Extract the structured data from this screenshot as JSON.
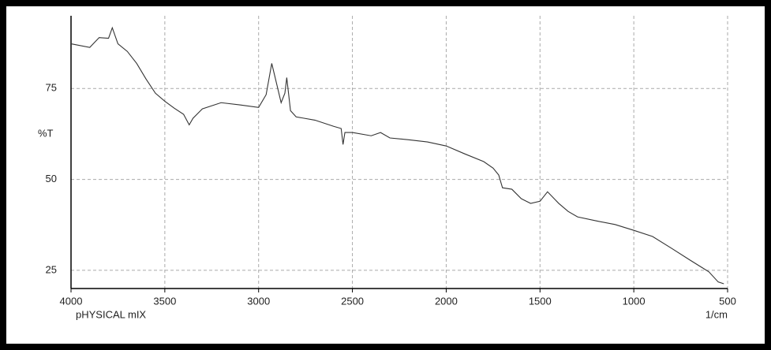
{
  "chart_data": {
    "type": "line",
    "y_label": "%T",
    "x_label": "1/cm",
    "annotation": "pHYSICAL mIX",
    "x": [
      4000,
      3900,
      3850,
      3800,
      3780,
      3750,
      3700,
      3650,
      3600,
      3550,
      3500,
      3450,
      3400,
      3370,
      3350,
      3300,
      3200,
      3100,
      3000,
      2960,
      2930,
      2910,
      2880,
      2860,
      2850,
      2830,
      2800,
      2700,
      2600,
      2560,
      2550,
      2540,
      2500,
      2400,
      2350,
      2300,
      2200,
      2100,
      2000,
      1900,
      1800,
      1750,
      1720,
      1700,
      1650,
      1600,
      1550,
      1500,
      1460,
      1400,
      1350,
      1300,
      1200,
      1100,
      1000,
      900,
      800,
      700,
      600,
      550,
      520
    ],
    "series": [
      {
        "name": "%T",
        "color": "#333333",
        "values": [
          87.3,
          86.3,
          89,
          88.8,
          91.7,
          87.3,
          85.2,
          81.9,
          77.6,
          73.7,
          71.5,
          69.6,
          67.9,
          65,
          66.8,
          69.4,
          71.1,
          70.5,
          69.8,
          73.3,
          81.9,
          77.6,
          71.1,
          73.7,
          78,
          68.9,
          67.2,
          66.3,
          64.6,
          64,
          59.6,
          62.9,
          62.9,
          62,
          62.9,
          61.4,
          60.9,
          60.3,
          59.2,
          57,
          54.9,
          53.1,
          51.2,
          47.7,
          47.3,
          44.7,
          43.4,
          44,
          46.6,
          43.4,
          41.2,
          39.7,
          38.6,
          37.6,
          36,
          34.3,
          31.1,
          27.8,
          24.6,
          21.8,
          21.3
        ]
      }
    ],
    "xlim": [
      4000,
      500
    ],
    "xticks": [
      4000,
      3500,
      3000,
      2500,
      2000,
      1500,
      1000,
      500
    ],
    "ylim": [
      20,
      95
    ],
    "yticks": [
      25,
      50,
      75
    ],
    "grid": true
  }
}
